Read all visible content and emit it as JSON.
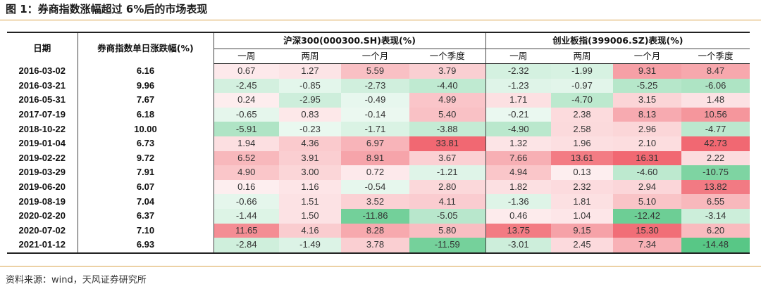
{
  "figure": {
    "title": "图 1：券商指数涨幅超过 6%后的市场表现",
    "source": "资料来源：wind，天风证券研究所"
  },
  "table": {
    "col_date": "日期",
    "col_pct": "券商指数单日涨跌幅(%)",
    "group1": "沪深300(000300.SH)表现(%)",
    "group2": "创业板指(399006.SZ)表现(%)",
    "periods": [
      "一周",
      "两周",
      "一个月",
      "一个季度"
    ],
    "rows": [
      {
        "date": "2016-03-02",
        "pct": "6.16",
        "hs": [
          "0.67",
          "1.27",
          "5.59",
          "3.79"
        ],
        "cy": [
          "-2.32",
          "-1.99",
          "9.31",
          "8.47"
        ]
      },
      {
        "date": "2016-03-21",
        "pct": "9.96",
        "hs": [
          "-2.45",
          "-0.85",
          "-2.73",
          "-4.40"
        ],
        "cy": [
          "-1.23",
          "-0.97",
          "-5.25",
          "-6.06"
        ]
      },
      {
        "date": "2016-05-31",
        "pct": "7.67",
        "hs": [
          "0.24",
          "-2.95",
          "-0.49",
          "4.99"
        ],
        "cy": [
          "1.71",
          "-4.70",
          "3.15",
          "1.48"
        ]
      },
      {
        "date": "2017-07-19",
        "pct": "6.18",
        "hs": [
          "-0.65",
          "0.83",
          "-0.14",
          "5.40"
        ],
        "cy": [
          "-0.21",
          "2.38",
          "8.13",
          "10.56"
        ]
      },
      {
        "date": "2018-10-22",
        "pct": "10.00",
        "hs": [
          "-5.91",
          "-0.23",
          "-1.71",
          "-3.88"
        ],
        "cy": [
          "-4.90",
          "2.58",
          "2.96",
          "-4.77"
        ]
      },
      {
        "date": "2019-01-04",
        "pct": "6.73",
        "hs": [
          "1.94",
          "4.36",
          "6.97",
          "33.81"
        ],
        "cy": [
          "1.32",
          "1.96",
          "2.10",
          "42.73"
        ]
      },
      {
        "date": "2019-02-22",
        "pct": "9.72",
        "hs": [
          "6.52",
          "3.91",
          "8.91",
          "3.67"
        ],
        "cy": [
          "7.66",
          "13.61",
          "16.31",
          "2.22"
        ]
      },
      {
        "date": "2019-03-29",
        "pct": "7.91",
        "hs": [
          "4.90",
          "3.00",
          "0.72",
          "-1.21"
        ],
        "cy": [
          "4.94",
          "0.13",
          "-4.60",
          "-10.75"
        ]
      },
      {
        "date": "2019-06-20",
        "pct": "6.07",
        "hs": [
          "0.16",
          "1.16",
          "-0.54",
          "2.80"
        ],
        "cy": [
          "1.82",
          "2.32",
          "2.94",
          "13.82"
        ]
      },
      {
        "date": "2019-08-19",
        "pct": "7.04",
        "hs": [
          "-0.66",
          "1.51",
          "3.52",
          "4.11"
        ],
        "cy": [
          "-1.36",
          "1.81",
          "5.10",
          "6.55"
        ]
      },
      {
        "date": "2020-02-20",
        "pct": "6.37",
        "hs": [
          "-1.44",
          "1.50",
          "-11.86",
          "-5.05"
        ],
        "cy": [
          "0.46",
          "1.04",
          "-12.42",
          "-3.14"
        ]
      },
      {
        "date": "2020-07-02",
        "pct": "7.10",
        "hs": [
          "11.65",
          "4.16",
          "8.28",
          "5.80"
        ],
        "cy": [
          "13.75",
          "9.15",
          "15.30",
          "6.20"
        ]
      },
      {
        "date": "2021-01-12",
        "pct": "6.93",
        "hs": [
          "-2.84",
          "-1.49",
          "3.78",
          "-11.59"
        ],
        "cy": [
          "-3.01",
          "2.45",
          "7.34",
          "-14.48"
        ]
      }
    ]
  },
  "colors": {
    "positive": "#f0606a",
    "negative": "#3fbf74",
    "rule": "#d8a24a"
  }
}
